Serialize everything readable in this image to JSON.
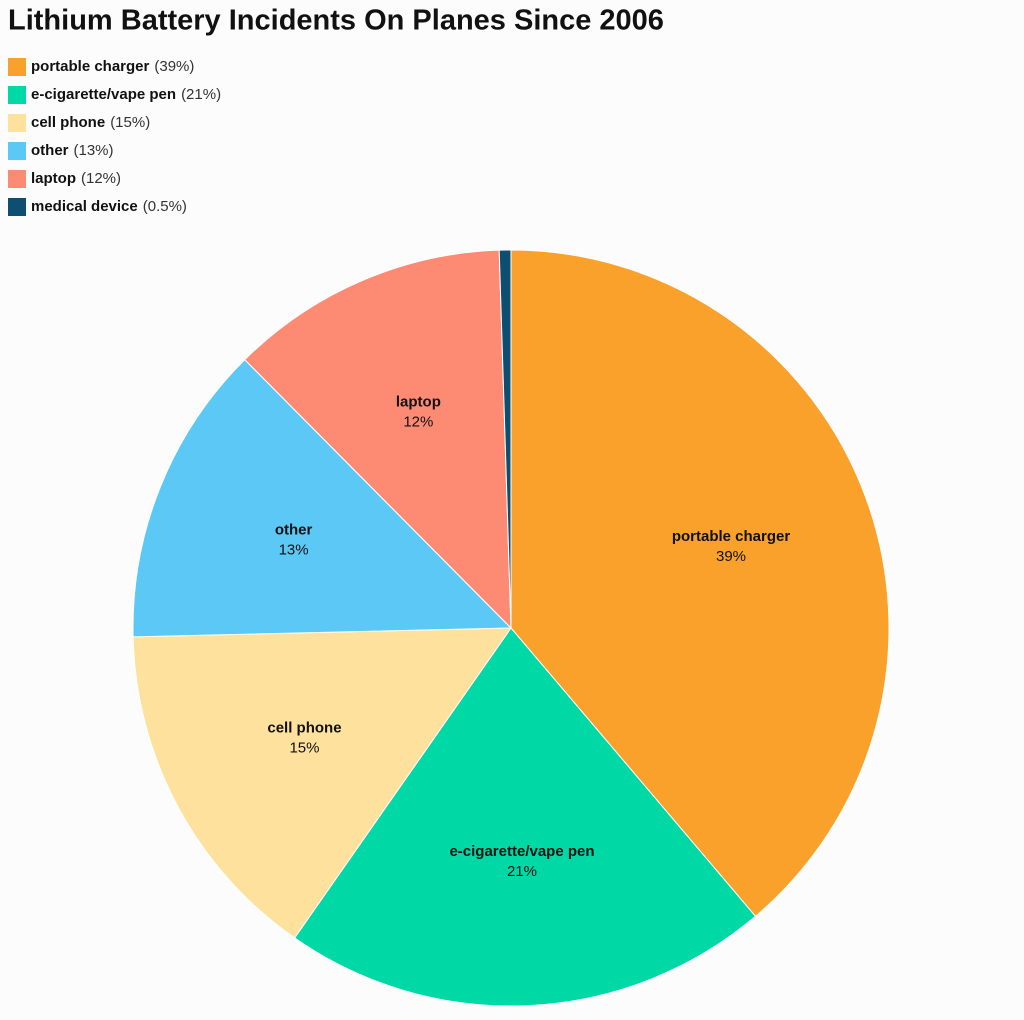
{
  "chart_data": {
    "type": "pie",
    "title": "Lithium Battery Incidents On Planes Since 2006",
    "categories": [
      "portable charger",
      "e-cigarette/vape pen",
      "cell phone",
      "other",
      "laptop",
      "medical device"
    ],
    "values": [
      39,
      21,
      15,
      13,
      12,
      0.5
    ],
    "value_labels": [
      "39%",
      "21%",
      "15%",
      "13%",
      "12%",
      "0.5%"
    ],
    "legend_labels": [
      "(39%)",
      "(21%)",
      "(15%)",
      "(13%)",
      "(12%)",
      "(0.5%)"
    ],
    "colors": [
      "#f9a12a",
      "#00d9a5",
      "#fde19c",
      "#5bc8f5",
      "#fd8a73",
      "#0c4f73"
    ]
  }
}
